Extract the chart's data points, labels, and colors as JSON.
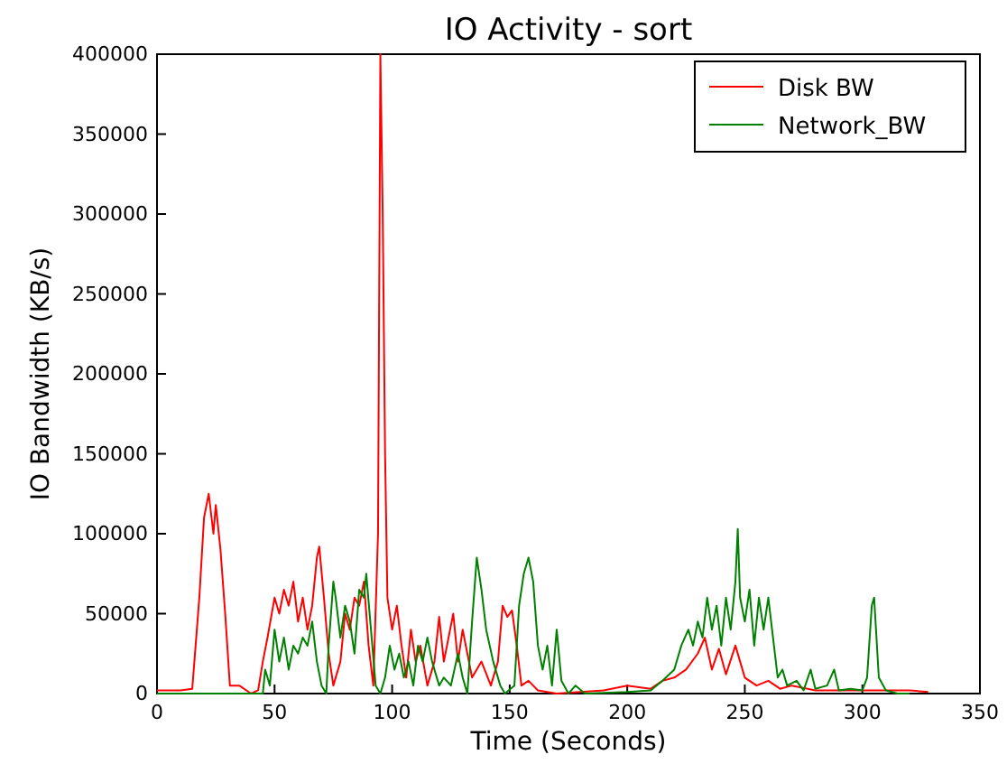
{
  "chart_data": {
    "type": "line",
    "title": "IO Activity - sort",
    "xlabel": "Time (Seconds)",
    "ylabel": "IO Bandwidth (KB/s)",
    "xlim": [
      0,
      350
    ],
    "xticks": [
      0,
      50,
      100,
      150,
      200,
      250,
      300,
      350
    ],
    "ylim": [
      0,
      400000
    ],
    "yticks": [
      0,
      50000,
      100000,
      150000,
      200000,
      250000,
      300000,
      350000,
      400000
    ],
    "legend": "top right",
    "grid": false,
    "series": [
      {
        "name": "Disk BW",
        "color": "#ff0000",
        "x": [
          0,
          10,
          15,
          18,
          20,
          22,
          24,
          25,
          27,
          29,
          31,
          35,
          40,
          43,
          45,
          47,
          50,
          52,
          54,
          56,
          58,
          60,
          62,
          64,
          66,
          68,
          69,
          71,
          73,
          75,
          78,
          80,
          82,
          84,
          86,
          88,
          90,
          92,
          94,
          95,
          96,
          97,
          98,
          100,
          102,
          104,
          106,
          108,
          110,
          112,
          115,
          118,
          120,
          122,
          124,
          126,
          128,
          130,
          132,
          134,
          138,
          142,
          145,
          147,
          149,
          151,
          153,
          155,
          158,
          162,
          170,
          190,
          200,
          210,
          215,
          220,
          225,
          230,
          233,
          236,
          239,
          242,
          246,
          248,
          250,
          255,
          260,
          265,
          270,
          280,
          300,
          310,
          320,
          328
        ],
        "values": [
          2000,
          2000,
          3000,
          60000,
          110000,
          125000,
          100000,
          118000,
          90000,
          50000,
          5000,
          5000,
          0,
          2000,
          20000,
          35000,
          60000,
          50000,
          65000,
          55000,
          70000,
          45000,
          60000,
          40000,
          55000,
          85000,
          92000,
          60000,
          25000,
          5000,
          20000,
          50000,
          40000,
          60000,
          55000,
          70000,
          30000,
          5000,
          100000,
          400000,
          300000,
          150000,
          60000,
          40000,
          55000,
          30000,
          10000,
          40000,
          20000,
          30000,
          5000,
          20000,
          48000,
          20000,
          35000,
          50000,
          20000,
          40000,
          25000,
          10000,
          20000,
          5000,
          20000,
          55000,
          48000,
          52000,
          30000,
          5000,
          8000,
          2000,
          0,
          2000,
          5000,
          3000,
          8000,
          10000,
          15000,
          25000,
          35000,
          15000,
          28000,
          12000,
          30000,
          20000,
          10000,
          5000,
          8000,
          3000,
          5000,
          2000,
          2000,
          2000,
          2000,
          1000
        ]
      },
      {
        "name": "Network_BW",
        "color": "#008000",
        "x": [
          0,
          45,
          46,
          48,
          50,
          52,
          54,
          56,
          58,
          60,
          62,
          64,
          66,
          68,
          70,
          72,
          73,
          75,
          76,
          78,
          80,
          82,
          84,
          86,
          88,
          89,
          91,
          93,
          95,
          97,
          99,
          101,
          103,
          105,
          107,
          109,
          111,
          113,
          115,
          117,
          120,
          122,
          125,
          128,
          130,
          132,
          134,
          136,
          138,
          140,
          143,
          146,
          148,
          152,
          154,
          156,
          158,
          160,
          162,
          164,
          166,
          168,
          170,
          172,
          175,
          178,
          182,
          200,
          210,
          215,
          220,
          223,
          226,
          228,
          230,
          232,
          234,
          236,
          238,
          240,
          242,
          244,
          246,
          247,
          248,
          250,
          252,
          254,
          256,
          258,
          260,
          262,
          264,
          266,
          268,
          272,
          275,
          278,
          280,
          285,
          288,
          290,
          295,
          300,
          302,
          304,
          305,
          307,
          310,
          315,
          320
        ],
        "values": [
          0,
          0,
          15000,
          5000,
          40000,
          20000,
          35000,
          15000,
          30000,
          25000,
          35000,
          30000,
          45000,
          20000,
          5000,
          0,
          30000,
          70000,
          60000,
          35000,
          55000,
          45000,
          25000,
          65000,
          60000,
          75000,
          40000,
          5000,
          0,
          10000,
          30000,
          15000,
          25000,
          10000,
          20000,
          5000,
          30000,
          20000,
          35000,
          20000,
          5000,
          10000,
          5000,
          25000,
          10000,
          0,
          45000,
          85000,
          65000,
          40000,
          20000,
          5000,
          0,
          5000,
          55000,
          75000,
          85000,
          70000,
          30000,
          15000,
          30000,
          5000,
          40000,
          8000,
          0,
          5000,
          0,
          1000,
          2000,
          8000,
          15000,
          30000,
          40000,
          30000,
          45000,
          35000,
          60000,
          40000,
          55000,
          30000,
          60000,
          40000,
          70000,
          103000,
          60000,
          45000,
          65000,
          30000,
          60000,
          40000,
          60000,
          35000,
          10000,
          15000,
          5000,
          8000,
          2000,
          15000,
          3000,
          5000,
          15000,
          2000,
          3000,
          2000,
          10000,
          55000,
          60000,
          10000,
          2000,
          0,
          0
        ]
      }
    ]
  }
}
